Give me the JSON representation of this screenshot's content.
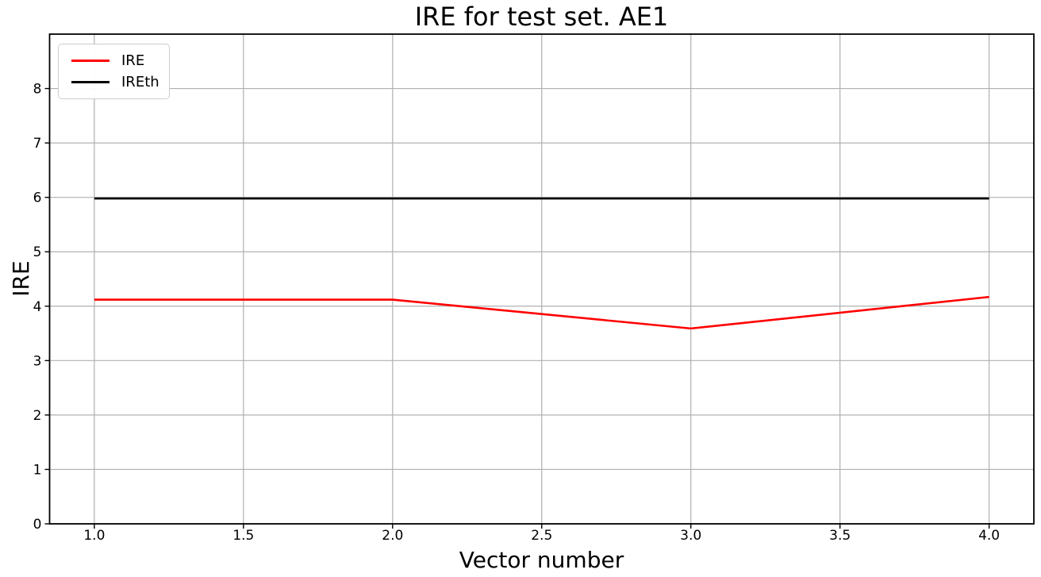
{
  "figure": {
    "background": "#ffffff",
    "text_color": "#000000"
  },
  "chart_data": {
    "type": "line",
    "title": "IRE for test set. AE1",
    "xlabel": "Vector number",
    "ylabel": "IRE",
    "x": [
      1.0,
      2.0,
      3.0,
      4.0
    ],
    "series": [
      {
        "name": "IRE",
        "color": "#ff0000",
        "linewidth": 2.6,
        "values": [
          4.12,
          4.12,
          3.59,
          4.17
        ]
      },
      {
        "name": "IREth",
        "color": "#000000",
        "linewidth": 2.6,
        "values": [
          5.98,
          5.98,
          5.98,
          5.98
        ]
      }
    ],
    "xlim": [
      0.85,
      4.15
    ],
    "ylim": [
      0,
      9
    ],
    "xticks": [
      1.0,
      1.5,
      2.0,
      2.5,
      3.0,
      3.5,
      4.0
    ],
    "xtick_labels": [
      "1.0",
      "1.5",
      "2.0",
      "2.5",
      "3.0",
      "3.5",
      "4.0"
    ],
    "yticks": [
      0,
      1,
      2,
      3,
      4,
      5,
      6,
      7,
      8
    ],
    "ytick_labels": [
      "0",
      "1",
      "2",
      "3",
      "4",
      "5",
      "6",
      "7",
      "8"
    ],
    "grid": true,
    "grid_color": "#b0b0b0",
    "spine_color": "#000000",
    "legend_position": "upper left"
  }
}
